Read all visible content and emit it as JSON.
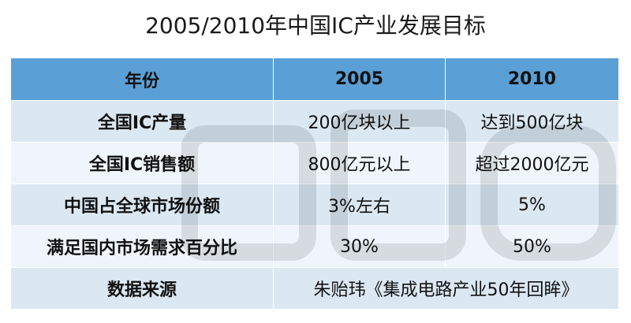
{
  "title": "2005/2010年中国IC产业发展目标",
  "table": {
    "headers": [
      "年份",
      "2005",
      "2010"
    ],
    "rows": [
      {
        "label": "全国IC产量",
        "v2005": "200亿块以上",
        "v2010": "达到500亿块"
      },
      {
        "label": "全国IC销售额",
        "v2005": "800亿元以上",
        "v2010": "超过2000亿元"
      },
      {
        "label": "中国占全球市场份额",
        "v2005": "3%左右",
        "v2010": "5%"
      },
      {
        "label": "满足国内市场需求百分比",
        "v2005": "30%",
        "v2010": "50%"
      }
    ],
    "source": {
      "label": "数据来源",
      "value": "朱贻玮《集成电路产业50年回眸》"
    }
  },
  "colors": {
    "header_bg": "#5aa0d6",
    "row_dark": "#dbe8f2",
    "row_light": "#eff5fa"
  }
}
